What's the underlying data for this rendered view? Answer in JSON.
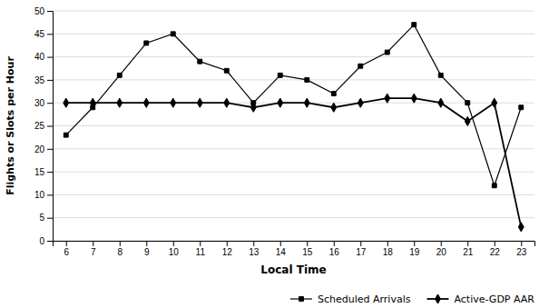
{
  "chart_data": {
    "type": "line",
    "x": [
      6,
      7,
      8,
      9,
      10,
      11,
      12,
      13,
      14,
      15,
      16,
      17,
      18,
      19,
      20,
      21,
      22,
      23
    ],
    "series": [
      {
        "name": "Scheduled Arrivals",
        "color": "#000000",
        "marker": "square",
        "line_style": "solid",
        "values": [
          23,
          29,
          36,
          43,
          45,
          39,
          37,
          30,
          36,
          35,
          32,
          38,
          41,
          47,
          36,
          30,
          12,
          29
        ]
      },
      {
        "name": "Active-GDP AAR",
        "color": "#000000",
        "marker": "diamond",
        "line_style": "solid",
        "values": [
          30,
          30,
          30,
          30,
          30,
          30,
          30,
          29,
          30,
          30,
          29,
          30,
          31,
          31,
          30,
          26,
          30,
          3
        ]
      }
    ],
    "xlabel": "Local Time",
    "ylabel": "Flights or Slots per Hour",
    "xlim": [
      5.5,
      23.5
    ],
    "xticks": [
      6,
      7,
      8,
      9,
      10,
      11,
      12,
      13,
      14,
      15,
      16,
      17,
      18,
      19,
      20,
      21,
      22,
      23
    ],
    "ylim": [
      0,
      50
    ],
    "yticks": [
      0,
      5,
      10,
      15,
      20,
      25,
      30,
      35,
      40,
      45,
      50
    ],
    "grid": "y",
    "legend": "lower right"
  }
}
